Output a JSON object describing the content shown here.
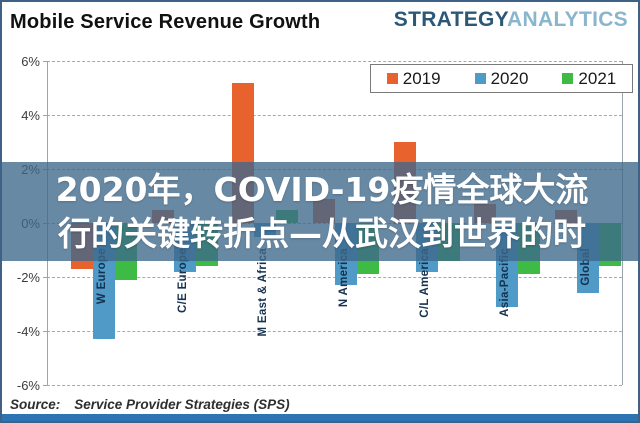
{
  "frame": {
    "title": "Mobile Service Revenue Growth",
    "logo": {
      "part1": "STRATEGY",
      "part2": "ANALYTICS"
    },
    "source_label": "Source:",
    "source_text": "Service Provider Strategies (SPS)"
  },
  "overlay": {
    "line1": "2020年，COVID-19疫情全球大流",
    "line2": "行的关键转折点—从武汉到世界的时",
    "background": "#3e688a",
    "text_color": "#ffffff"
  },
  "chart_data": {
    "type": "bar",
    "title": "Mobile Service Revenue Growth",
    "categories": [
      "W Europe",
      "C/E Europe",
      "M East & Africa",
      "N America",
      "C/L America",
      "Asia-Pacific",
      "Global"
    ],
    "series": [
      {
        "name": "2019",
        "color": "#e8622d",
        "values": [
          -1.7,
          0.5,
          5.2,
          0.9,
          3.0,
          0.7,
          0.5
        ]
      },
      {
        "name": "2020",
        "color": "#4f9ac7",
        "values": [
          -4.3,
          -1.8,
          -0.5,
          -2.3,
          -1.8,
          -3.1,
          -2.6
        ]
      },
      {
        "name": "2021",
        "color": "#3dbb44",
        "values": [
          -2.1,
          -1.6,
          0.5,
          -1.9,
          -1.4,
          -1.9,
          -1.6
        ]
      }
    ],
    "ylabel": "",
    "xlabel": "",
    "ylim": [
      -6,
      6
    ],
    "ytick_labels": [
      "6%",
      "4%",
      "2%",
      "0%",
      "-2%",
      "-4%",
      "-6%"
    ],
    "grid": "dashed",
    "legend_position": "top-right",
    "gridline_color": "#a9a9a9",
    "axis_label_color": "#3c3c3c",
    "category_label_color": "#16324f"
  }
}
